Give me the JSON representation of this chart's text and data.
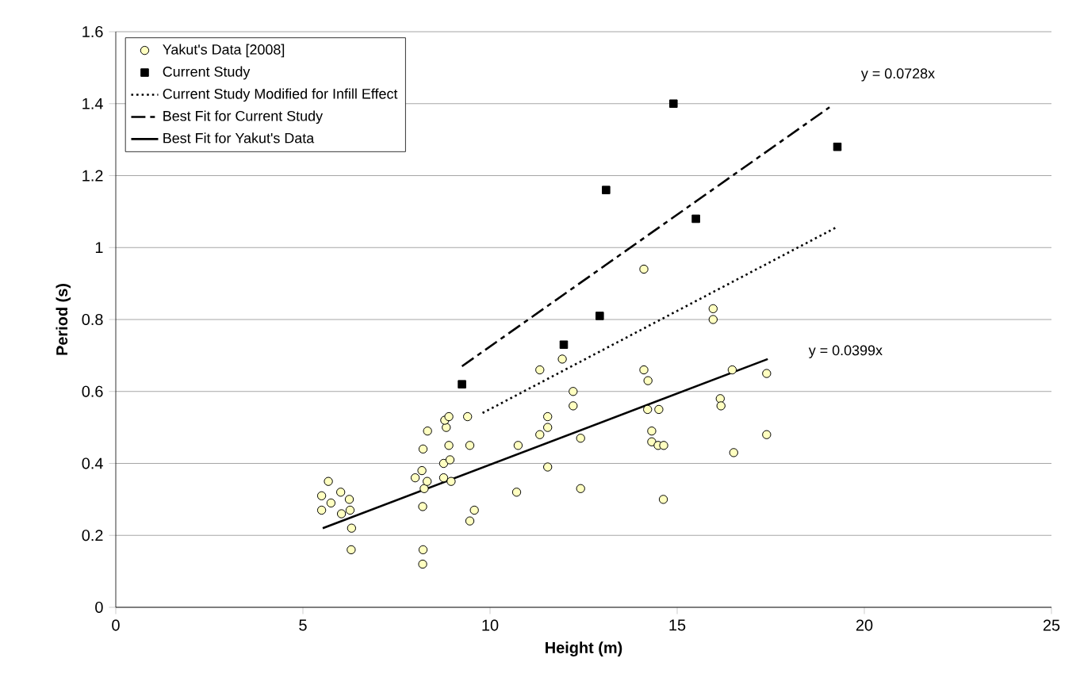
{
  "chart_data": {
    "type": "scatter",
    "xlabel": "Height (m)",
    "ylabel": "Period (s)",
    "xlim": [
      0,
      25
    ],
    "ylim": [
      0,
      1.6
    ],
    "xticks": [
      0,
      5,
      10,
      15,
      20,
      25
    ],
    "yticks": [
      0,
      0.2,
      0.4,
      0.6,
      0.8,
      1,
      1.2,
      1.4,
      1.6
    ],
    "grid": "y",
    "legend": "top left",
    "series": [
      {
        "name": "Yakut's Data [2008]",
        "marker": "circle",
        "color": "#ffffc0",
        "x": [
          5.68,
          5.5,
          6.01,
          5.75,
          6.24,
          5.5,
          6.03,
          6.26,
          6.3,
          6.29,
          8.21,
          8.2,
          8.2,
          8.0,
          8.24,
          8.32,
          8.18,
          8.21,
          8.33,
          8.76,
          8.93,
          8.76,
          8.96,
          8.83,
          8.79,
          8.9,
          9.4,
          9.46,
          8.9,
          9.58,
          9.46,
          10.75,
          10.71,
          14.11,
          15.96,
          15.96,
          11.33,
          11.93,
          12.22,
          12.22,
          11.54,
          11.54,
          11.33,
          12.42,
          11.54,
          12.42,
          14.11,
          14.22,
          14.21,
          14.51,
          14.32,
          14.32,
          14.49,
          14.64,
          14.63,
          16.15,
          16.17,
          16.47,
          17.39,
          17.39,
          16.51
        ],
        "values": [
          0.35,
          0.31,
          0.32,
          0.29,
          0.3,
          0.27,
          0.26,
          0.27,
          0.22,
          0.16,
          0.16,
          0.12,
          0.28,
          0.36,
          0.33,
          0.35,
          0.38,
          0.44,
          0.49,
          0.4,
          0.41,
          0.36,
          0.35,
          0.5,
          0.52,
          0.53,
          0.53,
          0.45,
          0.45,
          0.27,
          0.24,
          0.45,
          0.32,
          0.94,
          0.83,
          0.8,
          0.66,
          0.69,
          0.6,
          0.56,
          0.53,
          0.5,
          0.48,
          0.47,
          0.39,
          0.33,
          0.66,
          0.63,
          0.55,
          0.55,
          0.49,
          0.46,
          0.45,
          0.45,
          0.3,
          0.58,
          0.56,
          0.66,
          0.65,
          0.48,
          0.43
        ]
      },
      {
        "name": "Current Study",
        "marker": "square",
        "color": "#000000",
        "x": [
          9.25,
          11.97,
          12.93,
          13.1,
          14.9,
          15.5,
          19.28
        ],
        "values": [
          0.62,
          0.73,
          0.81,
          1.16,
          1.4,
          1.08,
          1.28
        ]
      },
      {
        "name": "Current Study Modified for Infill Effect",
        "type": "line",
        "line_style": "dotted",
        "color": "#000000",
        "x": [
          9.8,
          19.25
        ],
        "values": [
          0.54,
          1.056
        ]
      },
      {
        "name": "Best Fit for Current Study",
        "type": "line",
        "line_style": "dashed",
        "color": "#000000",
        "x": [
          9.25,
          19.07
        ],
        "values": [
          0.67,
          1.39
        ]
      },
      {
        "name": "Best Fit for Yakut's Data",
        "type": "line",
        "line_style": "solid",
        "color": "#000000",
        "x": [
          5.53,
          17.42
        ],
        "values": [
          0.22,
          0.69
        ]
      }
    ],
    "annotations": [
      "y = 0.0728x",
      "y = 0.0399x"
    ]
  }
}
